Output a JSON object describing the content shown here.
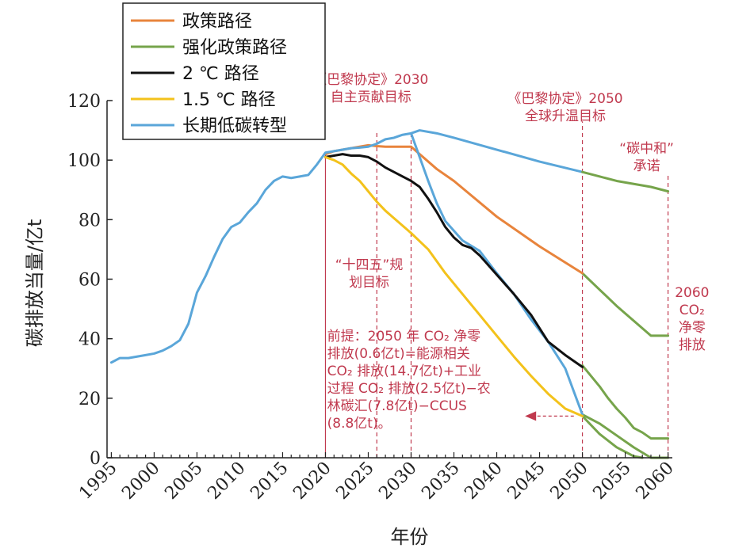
{
  "chart_data": {
    "type": "line",
    "xlabel": "年份",
    "ylabel": "碳排放当量/亿t",
    "xlim": [
      1994.5,
      2060.5
    ],
    "ylim": [
      0,
      120
    ],
    "x_ticks": [
      1995,
      2000,
      2005,
      2010,
      2015,
      2020,
      2025,
      2030,
      2035,
      2040,
      2045,
      2050,
      2055,
      2060
    ],
    "y_ticks": [
      0,
      20,
      40,
      60,
      80,
      100,
      120
    ],
    "grid": false,
    "legend_position": "top-left",
    "series": [
      {
        "name": "政策路径",
        "color": "#e8843c",
        "x": [
          2020,
          2021,
          2022,
          2023,
          2024,
          2025,
          2026,
          2027,
          2028,
          2029,
          2030,
          2031,
          2033,
          2035,
          2040,
          2045,
          2050
        ],
        "y": [
          102,
          103,
          103.5,
          104,
          104.5,
          105,
          104.7,
          104.5,
          104.5,
          104.5,
          104.5,
          102,
          97,
          93,
          81,
          71,
          62
        ]
      },
      {
        "name": "强化政策路径",
        "color": "#76a44b",
        "x": [
          2050,
          2052,
          2054,
          2056,
          2058,
          2060,
          2050,
          2052,
          2054,
          2056,
          2058,
          2060
        ],
        "y": [
          96,
          94.5,
          93,
          92,
          91,
          89.5,
          null,
          null,
          null,
          null,
          null,
          null
        ]
      },
      {
        "name": "2 ℃ 路径",
        "color": "#111111",
        "x": [
          2020,
          2021,
          2022,
          2023,
          2024,
          2025,
          2026,
          2027,
          2028,
          2029,
          2030,
          2031,
          2032,
          2033,
          2034,
          2035,
          2036,
          2037,
          2038,
          2040,
          2042,
          2044,
          2046,
          2048,
          2050
        ],
        "y": [
          101,
          101.5,
          102,
          101.5,
          101.5,
          101,
          99.5,
          97.5,
          96,
          94.5,
          93,
          91,
          87,
          82.5,
          77.5,
          74,
          71.5,
          70.5,
          68,
          61.5,
          55,
          48,
          39,
          34.5,
          30.5
        ]
      },
      {
        "name": "1.5 ℃ 路径",
        "color": "#f3c21b",
        "x": [
          2020,
          2021,
          2022,
          2023,
          2024,
          2025,
          2026,
          2027,
          2028,
          2029,
          2030,
          2032,
          2034,
          2036,
          2038,
          2040,
          2042,
          2044,
          2046,
          2048,
          2050
        ],
        "y": [
          101,
          100,
          98.5,
          95.5,
          93,
          89.5,
          86,
          83,
          80.5,
          78,
          75.5,
          70,
          62,
          55,
          48,
          41,
          34,
          27.5,
          21.5,
          16.5,
          14
        ]
      },
      {
        "name": "长期低碳转型",
        "color": "#5aa6d9",
        "x": [
          1995,
          1996,
          1997,
          1998,
          1999,
          2000,
          2001,
          2002,
          2003,
          2004,
          2005,
          2006,
          2007,
          2008,
          2009,
          2010,
          2011,
          2012,
          2013,
          2014,
          2015,
          2016,
          2017,
          2018,
          2019,
          2020,
          2021,
          2022,
          2023,
          2024,
          2025,
          2026,
          2027,
          2028,
          2029,
          2030,
          2031,
          2032,
          2033,
          2034,
          2036,
          2038,
          2040,
          2042,
          2044,
          2046,
          2048,
          2050
        ],
        "y": [
          32,
          33.5,
          33.5,
          34,
          34.5,
          35,
          36,
          37.5,
          39.5,
          45,
          55.5,
          61,
          67.5,
          73.5,
          77.5,
          79,
          82.5,
          85.5,
          90,
          93,
          94.5,
          94,
          94.5,
          95,
          98.5,
          102.5,
          103,
          103.5,
          104,
          104.2,
          104.5,
          105.5,
          107,
          107.5,
          108.5,
          109,
          101,
          93,
          85.5,
          79.5,
          73,
          69.5,
          62,
          55,
          46.5,
          39,
          30,
          14.5
        ]
      }
    ],
    "extra_series": [
      {
        "name": "",
        "color": "#5aa6d9",
        "x": [
          2030,
          2031,
          2033,
          2035,
          2040,
          2045,
          2050
        ],
        "y": [
          109,
          110,
          109,
          107.5,
          103.5,
          99.5,
          96
        ]
      },
      {
        "name": "",
        "color": "#76a44b",
        "x": [
          2050,
          2052,
          2054,
          2056,
          2058,
          2060
        ],
        "y": [
          62,
          56.5,
          51,
          46,
          41,
          41
        ]
      },
      {
        "name": "",
        "color": "#76a44b",
        "x": [
          2050,
          2052,
          2054,
          2056,
          2058,
          2060
        ],
        "y": [
          14.5,
          11.5,
          7.5,
          3.5,
          0,
          0
        ]
      },
      {
        "name": "",
        "color": "#76a44b",
        "x": [
          2050,
          2051,
          2052,
          2053,
          2054,
          2055,
          2056,
          2057,
          2058,
          2059,
          2060
        ],
        "y": [
          31,
          27.5,
          24,
          20,
          16.5,
          13.5,
          10,
          8.5,
          6.5,
          6.5,
          6.5
        ]
      },
      {
        "name": "",
        "color": "#76a44b",
        "x": [
          2050,
          2052,
          2054,
          2056,
          2057
        ],
        "y": [
          14,
          8,
          3.5,
          0.5,
          0
        ]
      }
    ],
    "vlines": [
      {
        "x": 2020,
        "style": "solid",
        "y_top": 102
      },
      {
        "x": 2026,
        "style": "dashed",
        "y_top": 110
      },
      {
        "x": 2030,
        "style": "dashed",
        "y_top": 110
      },
      {
        "x": 2050,
        "style": "dashed",
        "y_top": 113
      },
      {
        "x": 2060,
        "style": "dashed",
        "y_top": 95
      }
    ],
    "annotations": [
      {
        "lines": [
          "《巴黎协定》2030",
          "自主贡献目标"
        ]
      },
      {
        "lines": [
          "《巴黎协定》2050",
          "全球升温目标"
        ]
      },
      {
        "lines": [
          "“碳中和”",
          "承诺"
        ]
      },
      {
        "lines": [
          "“十四五”规",
          "划目标"
        ]
      },
      {
        "lines": [
          "2060",
          "CO₂",
          "净零",
          "排放"
        ]
      },
      {
        "lines": [
          "前提：2050 年 CO₂ 净零",
          "排放(0.6亿t)=能源相关",
          "CO₂ 排放(14.7亿t)+工业",
          "过程 CO₂ 排放(2.5亿t)−农",
          "林碳汇(7.8亿t)−CCUS",
          "(8.8亿t)。"
        ]
      }
    ]
  }
}
